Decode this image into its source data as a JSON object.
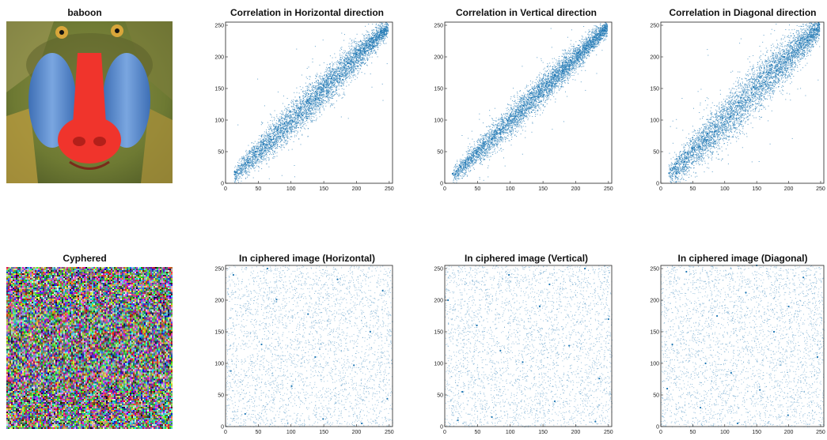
{
  "panels": {
    "baboon": {
      "title": "baboon"
    },
    "cyphered": {
      "title": "Cyphered"
    }
  },
  "colors": {
    "point": "#1f77b4",
    "axis": "#222222",
    "background": "#ffffff"
  },
  "chart_data": [
    {
      "type": "scatter",
      "title": "Correlation in Horizontal direction",
      "xlabel": "",
      "ylabel": "",
      "xlim": [
        0,
        255
      ],
      "ylim": [
        0,
        255
      ],
      "xticks": [
        0,
        50,
        100,
        150,
        200,
        250
      ],
      "yticks": [
        0,
        50,
        100,
        150,
        200,
        250
      ],
      "grid": false,
      "distribution": "correlated",
      "spread": 13,
      "points": [
        [
          14,
          18
        ],
        [
          25,
          29
        ],
        [
          35,
          33
        ],
        [
          46,
          50
        ],
        [
          58,
          62
        ],
        [
          67,
          62
        ],
        [
          79,
          84
        ],
        [
          90,
          95
        ],
        [
          102,
          99
        ],
        [
          113,
          118
        ],
        [
          125,
          130
        ],
        [
          138,
          133
        ],
        [
          150,
          155
        ],
        [
          162,
          166
        ],
        [
          174,
          170
        ],
        [
          187,
          190
        ],
        [
          199,
          204
        ],
        [
          212,
          208
        ],
        [
          224,
          229
        ],
        [
          238,
          241
        ],
        [
          243,
          244
        ]
      ]
    },
    {
      "type": "scatter",
      "title": "Correlation in Vertical direction",
      "xlabel": "",
      "ylabel": "",
      "xlim": [
        0,
        255
      ],
      "ylim": [
        0,
        255
      ],
      "xticks": [
        0,
        50,
        100,
        150,
        200,
        250
      ],
      "yticks": [
        0,
        50,
        100,
        150,
        200,
        250
      ],
      "grid": false,
      "distribution": "correlated",
      "spread": 11,
      "points": [
        [
          12,
          15
        ],
        [
          24,
          27
        ],
        [
          36,
          38
        ],
        [
          48,
          47
        ],
        [
          60,
          63
        ],
        [
          72,
          70
        ],
        [
          84,
          86
        ],
        [
          96,
          99
        ],
        [
          108,
          106
        ],
        [
          120,
          123
        ],
        [
          132,
          135
        ],
        [
          144,
          141
        ],
        [
          156,
          158
        ],
        [
          168,
          171
        ],
        [
          180,
          177
        ],
        [
          192,
          195
        ],
        [
          204,
          207
        ],
        [
          216,
          213
        ],
        [
          228,
          231
        ],
        [
          240,
          242
        ],
        [
          245,
          246
        ]
      ]
    },
    {
      "type": "scatter",
      "title": "Correlation in Diagonal direction",
      "xlabel": "",
      "ylabel": "",
      "xlim": [
        0,
        255
      ],
      "ylim": [
        0,
        255
      ],
      "xticks": [
        0,
        50,
        100,
        150,
        200,
        250
      ],
      "yticks": [
        0,
        50,
        100,
        150,
        200,
        250
      ],
      "grid": false,
      "distribution": "correlated",
      "spread": 17,
      "points": [
        [
          13,
          16
        ],
        [
          25,
          31
        ],
        [
          37,
          34
        ],
        [
          49,
          55
        ],
        [
          61,
          58
        ],
        [
          73,
          79
        ],
        [
          85,
          82
        ],
        [
          97,
          103
        ],
        [
          109,
          105
        ],
        [
          121,
          128
        ],
        [
          133,
          131
        ],
        [
          145,
          152
        ],
        [
          157,
          154
        ],
        [
          169,
          175
        ],
        [
          181,
          178
        ],
        [
          193,
          200
        ],
        [
          205,
          202
        ],
        [
          217,
          222
        ],
        [
          229,
          226
        ],
        [
          240,
          243
        ],
        [
          244,
          244
        ]
      ]
    },
    {
      "type": "scatter",
      "title": "In ciphered image (Horizontal)",
      "xlabel": "",
      "ylabel": "",
      "xlim": [
        0,
        255
      ],
      "ylim": [
        0,
        255
      ],
      "xticks": [
        0,
        50,
        100,
        150,
        200,
        250
      ],
      "yticks": [
        0,
        50,
        100,
        150,
        200,
        250
      ],
      "grid": false,
      "distribution": "uniform",
      "points": [
        [
          12,
          240
        ],
        [
          30,
          20
        ],
        [
          55,
          130
        ],
        [
          78,
          201
        ],
        [
          101,
          64
        ],
        [
          126,
          178
        ],
        [
          149,
          12
        ],
        [
          171,
          233
        ],
        [
          196,
          97
        ],
        [
          221,
          150
        ],
        [
          247,
          44
        ],
        [
          8,
          88
        ],
        [
          64,
          250
        ],
        [
          137,
          110
        ],
        [
          208,
          5
        ],
        [
          240,
          215
        ]
      ]
    },
    {
      "type": "scatter",
      "title": "In ciphered image (Vertical)",
      "xlabel": "",
      "ylabel": "",
      "xlim": [
        0,
        255
      ],
      "ylim": [
        0,
        255
      ],
      "xticks": [
        0,
        50,
        100,
        150,
        200,
        250
      ],
      "yticks": [
        0,
        50,
        100,
        150,
        200,
        250
      ],
      "grid": false,
      "distribution": "uniform",
      "points": [
        [
          5,
          200
        ],
        [
          27,
          55
        ],
        [
          49,
          160
        ],
        [
          72,
          15
        ],
        [
          98,
          240
        ],
        [
          119,
          102
        ],
        [
          145,
          190
        ],
        [
          168,
          40
        ],
        [
          190,
          128
        ],
        [
          214,
          250
        ],
        [
          236,
          76
        ],
        [
          250,
          170
        ],
        [
          85,
          120
        ],
        [
          160,
          225
        ],
        [
          20,
          10
        ],
        [
          230,
          8
        ]
      ]
    },
    {
      "type": "scatter",
      "title": "In ciphered image (Diagonal)",
      "xlabel": "",
      "ylabel": "",
      "xlim": [
        0,
        255
      ],
      "ylim": [
        0,
        255
      ],
      "xticks": [
        0,
        50,
        100,
        150,
        200,
        250
      ],
      "yticks": [
        0,
        50,
        100,
        150,
        200,
        250
      ],
      "grid": false,
      "distribution": "uniform",
      "points": [
        [
          18,
          130
        ],
        [
          40,
          245
        ],
        [
          62,
          30
        ],
        [
          88,
          175
        ],
        [
          110,
          85
        ],
        [
          133,
          212
        ],
        [
          155,
          58
        ],
        [
          177,
          150
        ],
        [
          199,
          18
        ],
        [
          223,
          236
        ],
        [
          245,
          110
        ],
        [
          70,
          100
        ],
        [
          120,
          5
        ],
        [
          200,
          190
        ],
        [
          10,
          60
        ],
        [
          150,
          255
        ]
      ]
    }
  ]
}
